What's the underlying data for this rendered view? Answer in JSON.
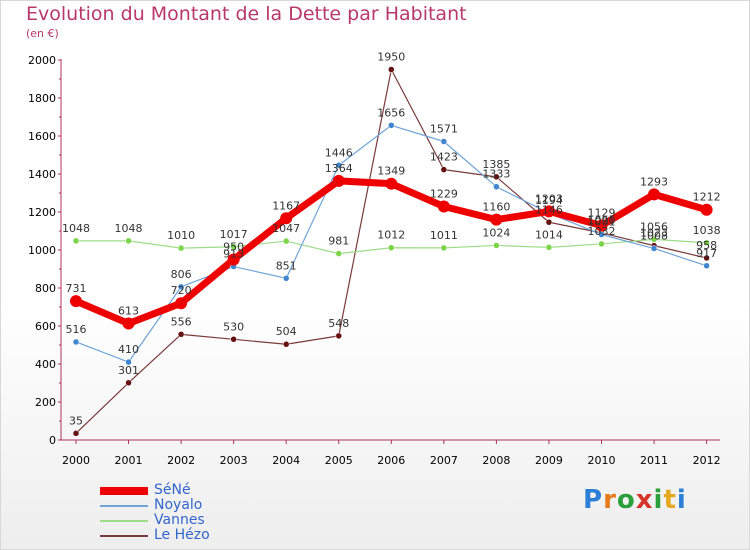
{
  "title": "Evolution du Montant de la Dette par Habitant",
  "subtitle": "(en €)",
  "brand": {
    "letters": [
      "P",
      "r",
      "o",
      "x",
      "i",
      "t",
      "i"
    ],
    "colors": [
      "#2b7fd6",
      "#e57a1e",
      "#2b9f3a",
      "#d6342b",
      "#2b9f3a",
      "#e5a81e",
      "#2b7fd6"
    ]
  },
  "chart_data": {
    "type": "line",
    "x": [
      "2000",
      "2001",
      "2002",
      "2003",
      "2004",
      "2005",
      "2006",
      "2007",
      "2008",
      "2009",
      "2010",
      "2011",
      "2012"
    ],
    "ylim": [
      0,
      2000
    ],
    "yticks": [
      "0",
      "200",
      "400",
      "600",
      "800",
      "1000",
      "1200",
      "1400",
      "1600",
      "1800",
      "2000"
    ],
    "grid": false,
    "legend_placement": "bottom-left",
    "series": [
      {
        "name": "SéNé",
        "color": "#ee0000",
        "width": 7,
        "marker_color": "#ee0000",
        "values": [
          731,
          613,
          720,
          950,
          1167,
          1364,
          1349,
          1229,
          1160,
          1203,
          1129,
          1293,
          1212
        ],
        "labels": [
          "731",
          "613",
          "720",
          "950",
          "1167",
          "1364",
          "1349",
          "1229",
          "1160",
          "1203",
          "1129",
          "1293",
          "1212"
        ]
      },
      {
        "name": "Noyalo",
        "color": "#6fa4d8",
        "width": 1.2,
        "marker_color": "#3f85cf",
        "values": [
          516,
          410,
          806,
          913,
          851,
          1446,
          1656,
          1571,
          1333,
          1194,
          1081,
          1008,
          917
        ],
        "labels": [
          "516",
          "410",
          "806",
          "913",
          "851",
          "1446",
          "1656",
          "1571",
          "1333",
          "1194",
          "1081",
          "1008",
          "917"
        ]
      },
      {
        "name": "Vannes",
        "color": "#9fdc8a",
        "width": 1.2,
        "marker_color": "#7bd44a",
        "values": [
          1048,
          1048,
          1010,
          1017,
          1047,
          981,
          1012,
          1011,
          1024,
          1014,
          1032,
          1056,
          1038
        ],
        "labels": [
          "1048",
          "1048",
          "1010",
          "1017",
          "1047",
          "981",
          "1012",
          "1011",
          "1024",
          "1014",
          "1032",
          "1056",
          "1038"
        ]
      },
      {
        "name": "Le Hézo",
        "color": "#7a3a3a",
        "width": 1.2,
        "marker_color": "#661111",
        "values": [
          35,
          301,
          556,
          530,
          504,
          548,
          1950,
          1423,
          1385,
          1146,
          1090,
          1023,
          958
        ],
        "labels": [
          "35",
          "301",
          "556",
          "530",
          "504",
          "548",
          "1950",
          "1423",
          "1385",
          "1146",
          "1090",
          "1023",
          "958"
        ]
      }
    ]
  }
}
